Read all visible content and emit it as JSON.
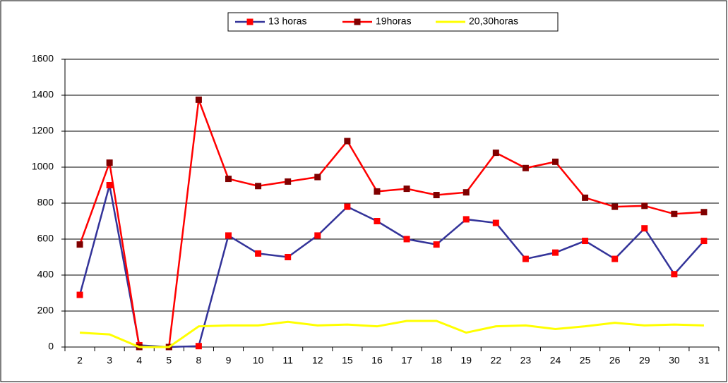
{
  "chart_data": {
    "type": "line",
    "categories": [
      "2",
      "3",
      "4",
      "5",
      "8",
      "9",
      "10",
      "11",
      "12",
      "15",
      "16",
      "17",
      "18",
      "19",
      "22",
      "23",
      "24",
      "25",
      "26",
      "29",
      "30",
      "31"
    ],
    "series": [
      {
        "name": "13 horas",
        "color": "#333399",
        "marker_color": "#ff0000",
        "values": [
          290,
          900,
          10,
          0,
          5,
          620,
          520,
          500,
          620,
          780,
          700,
          600,
          570,
          710,
          690,
          490,
          525,
          590,
          490,
          660,
          405,
          590
        ]
      },
      {
        "name": "19horas",
        "color": "#ff0000",
        "marker_color": "#800000",
        "values": [
          570,
          1025,
          0,
          0,
          1375,
          935,
          895,
          920,
          945,
          1145,
          865,
          880,
          845,
          860,
          1080,
          995,
          1030,
          830,
          780,
          785,
          740,
          750
        ]
      },
      {
        "name": "20,30horas",
        "color": "#ffff00",
        "marker_color": null,
        "values": [
          80,
          70,
          0,
          0,
          115,
          120,
          120,
          140,
          120,
          125,
          115,
          145,
          145,
          80,
          115,
          120,
          100,
          115,
          135,
          120,
          125,
          120
        ]
      }
    ],
    "ylim": [
      0,
      1600
    ],
    "yticks": [
      0,
      200,
      400,
      600,
      800,
      1000,
      1200,
      1400,
      1600
    ],
    "grid": true,
    "legend": "top"
  }
}
